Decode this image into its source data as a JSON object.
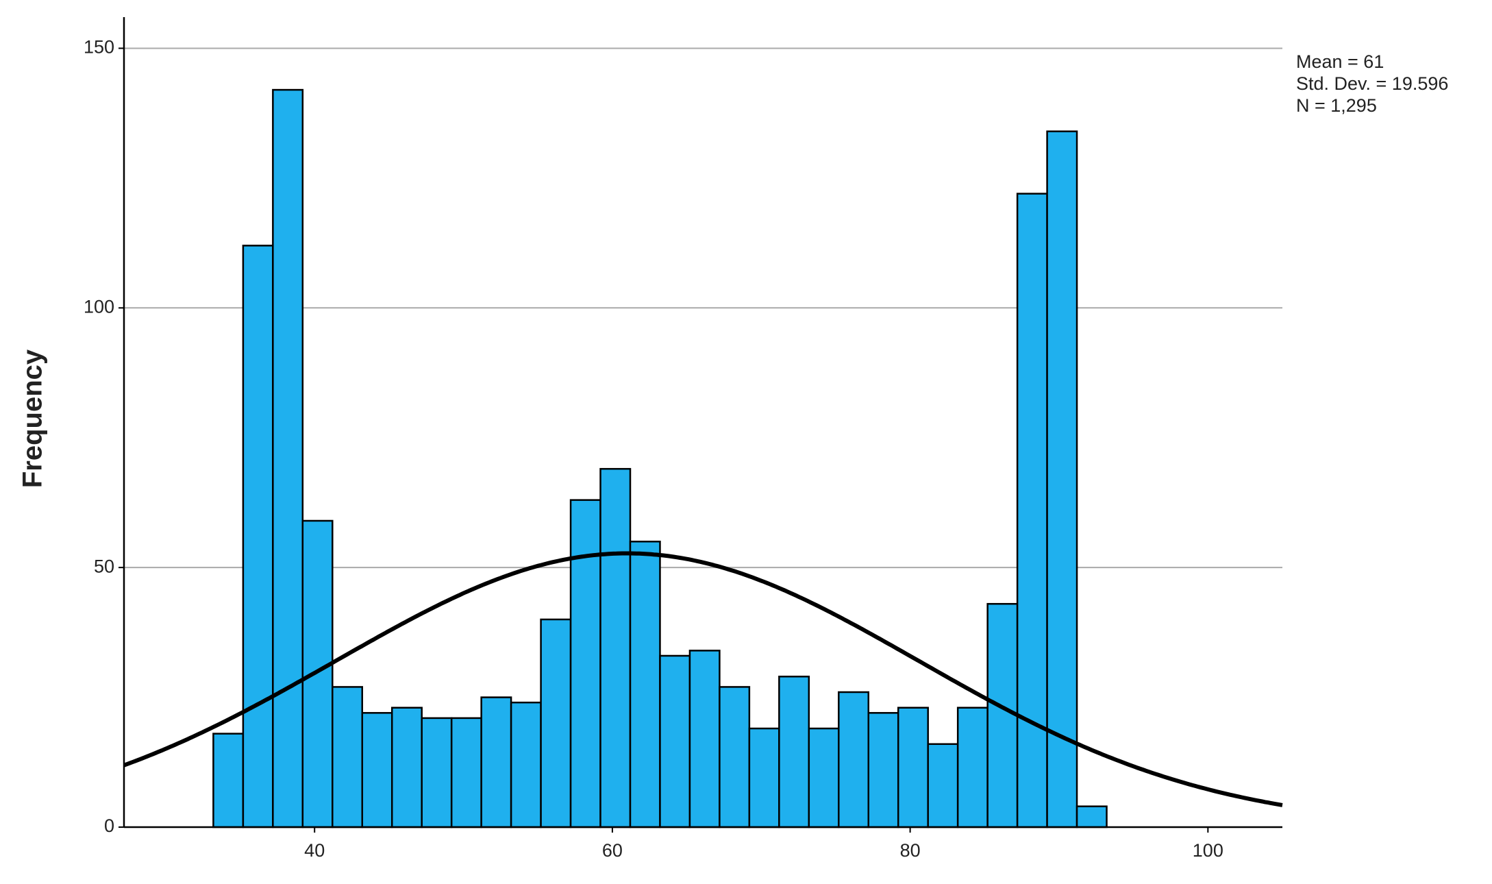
{
  "chart_data": {
    "type": "histogram",
    "y_label": "Frequency",
    "bins": [
      33.2,
      35.2,
      37.2,
      39.2,
      41.2,
      43.2,
      45.2,
      47.2,
      49.2,
      51.2,
      53.2,
      55.2,
      57.2,
      59.2,
      61.2,
      63.2,
      65.2,
      67.2,
      69.2,
      71.2,
      73.2,
      75.2,
      77.2,
      79.2,
      81.2,
      83.2,
      85.2,
      87.2,
      89.2,
      91.2,
      93.2
    ],
    "values": [
      18,
      112,
      142,
      59,
      27,
      22,
      23,
      21,
      21,
      25,
      24,
      40,
      63,
      69,
      55,
      33,
      34,
      27,
      19,
      29,
      19,
      26,
      22,
      23,
      16,
      23,
      43,
      122,
      134,
      4
    ],
    "color": "#1fb0ee",
    "curve_color": "#000000",
    "xlim": [
      27.2,
      105
    ],
    "ylim": [
      0,
      156
    ],
    "xticks": [
      40,
      60,
      80,
      100
    ],
    "yticks": [
      0,
      50,
      100,
      150
    ],
    "grid": true,
    "stats": [
      {
        "label": "Mean = 61",
        "value": 61
      },
      {
        "label": "Std. Dev. = 19.596",
        "value": 19.596
      },
      {
        "label": "N = 1,295",
        "value": 1295
      }
    ]
  }
}
